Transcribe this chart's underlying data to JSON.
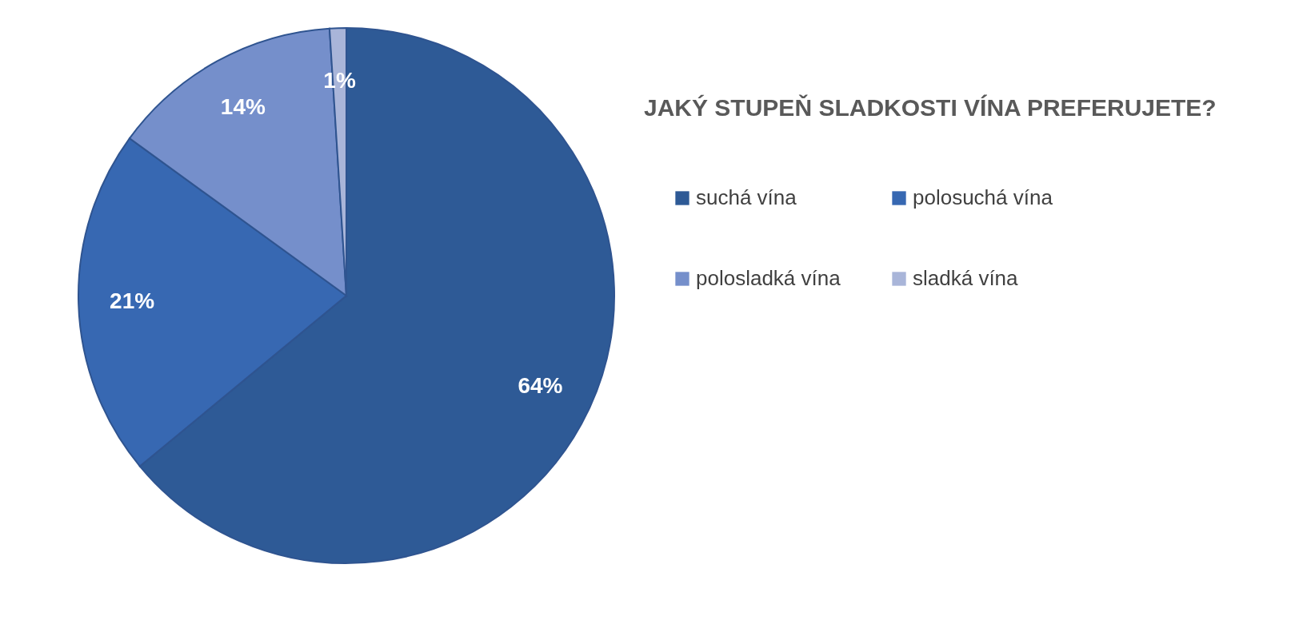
{
  "chart_data": {
    "type": "pie",
    "title": "JAKÝ STUPEŇ SLADKOSTI VÍNA PREFERUJETE?",
    "categories": [
      "suchá vína",
      "polosuchá vína",
      "polosladká vína",
      "sladká vína"
    ],
    "values": [
      64,
      21,
      14,
      1
    ],
    "colors": [
      "#2e5a96",
      "#3768b2",
      "#758fcb",
      "#a9b5d9"
    ],
    "value_labels": [
      "64%",
      "21%",
      "14%",
      "1%"
    ],
    "legend": "right"
  }
}
